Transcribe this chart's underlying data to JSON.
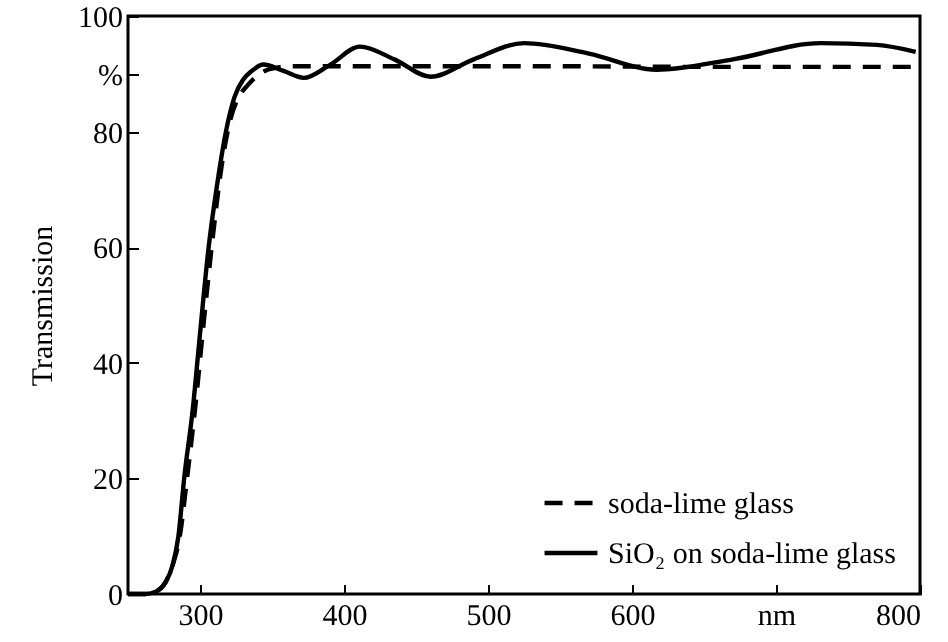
{
  "chart_data": {
    "type": "line",
    "xlabel": null,
    "ylabel": "Transmission",
    "xlim": [
      250,
      800
    ],
    "ylim": [
      0,
      100
    ],
    "xticks": [
      300,
      400,
      500,
      600,
      {
        "value": 700,
        "label": "nm"
      },
      800
    ],
    "yticks": [
      0,
      20,
      40,
      60,
      80,
      {
        "value": 90,
        "label": "%"
      },
      100
    ],
    "legend": "bottom right",
    "grid": false,
    "series": [
      {
        "name": "soda-lime glass",
        "color": "#000000",
        "line_style": "dashed",
        "x": [
          250,
          262,
          270,
          276,
          281,
          286,
          291,
          297,
          303,
          309,
          315,
          321,
          327,
          333,
          339,
          345,
          352,
          360,
          380,
          450,
          550,
          650,
          750,
          800
        ],
        "values": [
          0,
          0,
          0.5,
          2,
          5,
          10,
          20,
          33,
          48,
          62,
          74,
          82,
          86,
          88,
          89.5,
          90.5,
          91,
          91.3,
          91.3,
          91.3,
          91.3,
          91.2,
          91.2,
          91.2
        ]
      },
      {
        "name": "SiO₂ on soda-lime glass",
        "color": "#000000",
        "line_style": "solid",
        "x": [
          250,
          262,
          270,
          276,
          281,
          285,
          289,
          295,
          300,
          306,
          312,
          318,
          324,
          330,
          336,
          344,
          358,
          372,
          390,
          411,
          435,
          460,
          490,
          525,
          570,
          617,
          670,
          731,
          770,
          797
        ],
        "values": [
          0,
          0,
          0.5,
          2,
          5,
          10,
          20,
          32,
          45,
          60,
          71,
          80,
          86,
          89,
          90.5,
          91.6,
          90.5,
          89.3,
          91.5,
          94.7,
          92.5,
          89.5,
          92.5,
          95.3,
          93.5,
          90.7,
          92.5,
          95.3,
          95,
          93.8
        ]
      }
    ]
  }
}
